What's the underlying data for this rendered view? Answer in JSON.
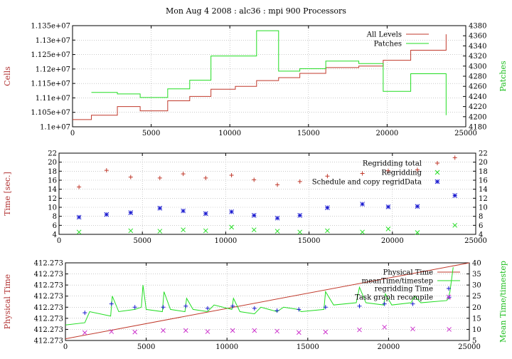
{
  "title": "Mon Aug 4 2008 : alc36 : mpi 900 Processors",
  "colors": {
    "red": "#c0392b",
    "green": "#22dd22",
    "blue": "#1a1ad0",
    "magenta": "#cc33cc",
    "axis_left": "#b03030",
    "axis_right": "#1fbf1f",
    "grid": "#aaaaaa"
  },
  "chart_data": [
    {
      "type": "line",
      "xlim": [
        0,
        25000
      ],
      "xticks": [
        0,
        5000,
        10000,
        15000,
        20000,
        25000
      ],
      "ylabel": "Cells",
      "ylim": [
        11000000,
        11350000
      ],
      "yticks": [
        11000000,
        11050000,
        11100000,
        11150000,
        11200000,
        11250000,
        11300000,
        11350000
      ],
      "ytick_labels": [
        "1.1e+07",
        "1.105e+07",
        "1.11e+07",
        "1.115e+07",
        "1.12e+07",
        "1.125e+07",
        "1.13e+07",
        "1.135e+07"
      ],
      "y2label": "Patches",
      "y2lim": [
        4180,
        4380
      ],
      "y2ticks": [
        4180,
        4200,
        4220,
        4240,
        4260,
        4280,
        4300,
        4320,
        4340,
        4360,
        4380
      ],
      "grid": true,
      "legend": "top-right",
      "series": [
        {
          "name": "All Levels",
          "axis": "left",
          "style": "step",
          "x": [
            0,
            1200,
            2850,
            4300,
            6050,
            7450,
            8800,
            10350,
            11700,
            13100,
            14450,
            16100,
            18200,
            19750,
            21500,
            23750,
            23750
          ],
          "y": [
            11025000,
            11040000,
            11070000,
            11055000,
            11090000,
            11105000,
            11130000,
            11140000,
            11160000,
            11170000,
            11185000,
            11205000,
            11210000,
            11230000,
            11265000,
            11320000,
            11320000
          ]
        },
        {
          "name": "Patches",
          "axis": "right",
          "style": "step",
          "x": [
            1200,
            2850,
            4300,
            6050,
            7450,
            8800,
            10350,
            11700,
            13100,
            14450,
            16100,
            18200,
            19750,
            21500,
            23750
          ],
          "y": [
            4248,
            4245,
            4238,
            4255,
            4272,
            4320,
            4320,
            4370,
            4290,
            4295,
            4310,
            4305,
            4250,
            4285,
            4203
          ]
        }
      ]
    },
    {
      "type": "scatter",
      "xlim": [
        0,
        25000
      ],
      "xticks": [
        0,
        5000,
        10000,
        15000,
        20000,
        25000
      ],
      "ylabel": "Time [sec.]",
      "ylim": [
        4,
        22
      ],
      "yticks": [
        4,
        6,
        8,
        10,
        12,
        14,
        16,
        18,
        20,
        22
      ],
      "y2lim": [
        4,
        22
      ],
      "y2ticks": [
        4,
        6,
        8,
        10,
        12,
        14,
        16,
        18,
        20,
        22
      ],
      "grid": true,
      "legend": "top-right",
      "series": [
        {
          "name": "Regridding total",
          "marker": "plus",
          "color": "red",
          "x": [
            1200,
            2850,
            4300,
            6050,
            7450,
            8800,
            10350,
            11700,
            13100,
            14450,
            16100,
            18200,
            19750,
            21500,
            23750
          ],
          "y": [
            14.5,
            18.2,
            16.7,
            16.5,
            17.4,
            16.5,
            17.1,
            16.1,
            15.0,
            15.7,
            16.9,
            17.5,
            18.1,
            18.3,
            21.0
          ]
        },
        {
          "name": "Regridding",
          "marker": "cross",
          "color": "green",
          "x": [
            1200,
            4300,
            6050,
            7450,
            8800,
            10350,
            11700,
            13100,
            14450,
            16100,
            18200,
            19750,
            21500,
            23750
          ],
          "y": [
            4.5,
            4.8,
            4.7,
            5.0,
            4.8,
            5.6,
            5.0,
            4.7,
            4.5,
            4.8,
            4.5,
            5.2,
            4.4,
            6.0
          ]
        },
        {
          "name": "Schedule and copy regridData",
          "marker": "star",
          "color": "blue",
          "x": [
            1200,
            2850,
            4300,
            6050,
            7450,
            8800,
            10350,
            11700,
            13100,
            14450,
            16100,
            18200,
            19750,
            21500,
            23750
          ],
          "y": [
            7.8,
            8.4,
            8.8,
            9.8,
            9.2,
            8.6,
            9.0,
            8.2,
            7.6,
            8.2,
            9.9,
            10.7,
            10.1,
            10.2,
            12.6
          ]
        }
      ]
    },
    {
      "type": "line",
      "xlim": [
        0,
        25000
      ],
      "xticks": [
        0,
        5000,
        10000,
        15000,
        20000,
        25000
      ],
      "ylabel": "Physical Time",
      "ylim": [
        0,
        7
      ],
      "ytick_labels": [
        "412.273",
        "412.273",
        "412.273",
        "412.273",
        "412.273",
        "412.273",
        "412.273",
        "412.273"
      ],
      "y2label": "Mean Time/timestep",
      "y2lim": [
        5,
        40
      ],
      "y2ticks": [
        5,
        10,
        15,
        20,
        25,
        30,
        35,
        40
      ],
      "grid": true,
      "legend": "top-right",
      "series": [
        {
          "name": "Physical Time",
          "axis": "left",
          "style": "line",
          "x": [
            0,
            25000
          ],
          "y": [
            0.15,
            7.0
          ]
        },
        {
          "name": "meanTime/timestep",
          "axis": "right",
          "style": "line",
          "x": [
            0,
            1200,
            1500,
            2800,
            2900,
            3300,
            4300,
            4700,
            4800,
            5000,
            6000,
            6100,
            6500,
            7400,
            7500,
            7900,
            8800,
            9200,
            10300,
            10400,
            10800,
            11700,
            12100,
            13100,
            13500,
            14400,
            14600,
            16000,
            16100,
            16600,
            18000,
            18200,
            18600,
            19700,
            19800,
            20200,
            21400,
            21600,
            22000,
            23600,
            23700,
            23800,
            24000
          ],
          "y": [
            12,
            13,
            18,
            16,
            25,
            18,
            19,
            20,
            30,
            19,
            18,
            27,
            19,
            18,
            24,
            19,
            18,
            21,
            19,
            24,
            18,
            17,
            20,
            18,
            20,
            19,
            18,
            19,
            27,
            21,
            22,
            29,
            22,
            21,
            26,
            21,
            22,
            25,
            22,
            23,
            24,
            27,
            38
          ]
        },
        {
          "name": "regridding Time",
          "axis": "right",
          "marker": "plus",
          "color": "blue",
          "x": [
            1200,
            2850,
            4300,
            6050,
            7450,
            8800,
            10350,
            11700,
            13100,
            14450,
            16100,
            18200,
            19750,
            21500,
            23750
          ],
          "y": [
            17.5,
            21.5,
            20.0,
            20.0,
            20.5,
            19.5,
            20.5,
            19.5,
            18.5,
            19.0,
            20.0,
            20.5,
            21.5,
            21.5,
            24.5
          ]
        },
        {
          "name": "Task graph recompile",
          "axis": "right",
          "marker": "cross",
          "color": "magenta",
          "x": [
            1200,
            2850,
            4300,
            6050,
            7450,
            8800,
            10350,
            11700,
            13100,
            14450,
            16100,
            18200,
            19750,
            21500,
            23750
          ],
          "y": [
            8.5,
            9.0,
            8.8,
            9.5,
            9.5,
            9.0,
            9.5,
            9.5,
            9.2,
            8.6,
            8.8,
            9.8,
            11.0,
            10.2,
            10.0
          ]
        }
      ]
    }
  ]
}
